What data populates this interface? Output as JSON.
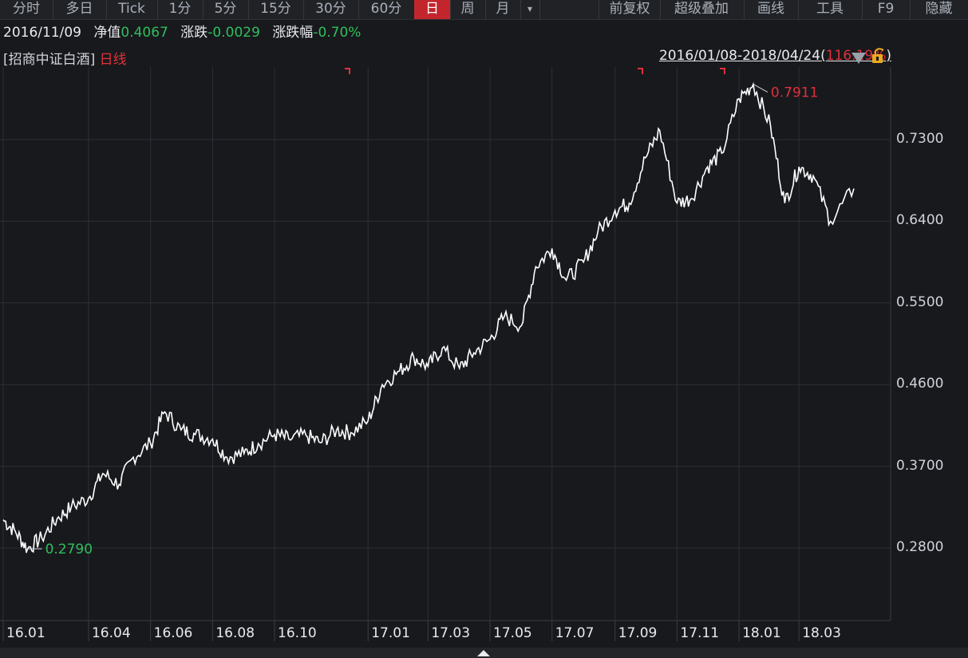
{
  "toolbar": {
    "tabs": [
      "分时",
      "多日",
      "Tick",
      "1分",
      "5分",
      "15分",
      "30分",
      "60分",
      "日",
      "周",
      "月",
      "▾"
    ],
    "active_tab": "日",
    "right": [
      "前复权",
      "超级叠加",
      "画线",
      "工具",
      "F9",
      "隐藏"
    ]
  },
  "info": {
    "date": "2016/11/09",
    "nav_label": "净值",
    "nav_value": "0.4067",
    "chg_label": "涨跌",
    "chg_value": "-0.0029",
    "pct_label": "涨跌幅",
    "pct_value": "-0.70%"
  },
  "series_title": "[招商中证白酒]",
  "period_label": "日线",
  "range_text": "2016/01/08-2018/04/24(",
  "range_pct": "116.19%",
  "range_close": ")",
  "colors": {
    "up": "#e0313a",
    "down": "#2fbf5c",
    "line": "#ffffff",
    "bg": "#18191d",
    "grid": "#2c2f36"
  },
  "chart_data": {
    "type": "line",
    "title": "",
    "x_tick_labels": [
      "16.01",
      "16.04",
      "16.06",
      "16.08",
      "16.10",
      "17.01",
      "17.03",
      "17.05",
      "17.07",
      "17.09",
      "17.11",
      "18.01",
      "18.03"
    ],
    "y_tick_labels": [
      "0.7300",
      "0.6400",
      "0.5500",
      "0.4600",
      "0.3700",
      "0.2800"
    ],
    "ylim": [
      0.2,
      0.81
    ],
    "max_label": "0.7911",
    "min_label": "0.2790",
    "grid": true,
    "series": [
      {
        "x": [
          "2016-01-08",
          "2016-01-20",
          "2016-02-01",
          "2016-02-15",
          "2016-03-01",
          "2016-03-15",
          "2016-04-01",
          "2016-04-15",
          "2016-05-01",
          "2016-05-15",
          "2016-06-01",
          "2016-06-15",
          "2016-07-01",
          "2016-07-15",
          "2016-08-01",
          "2016-08-15",
          "2016-09-01",
          "2016-09-15",
          "2016-10-01",
          "2016-10-15",
          "2016-11-01",
          "2016-11-15",
          "2016-12-01",
          "2016-12-15",
          "2017-01-01",
          "2017-01-15",
          "2017-02-01",
          "2017-02-15",
          "2017-03-01",
          "2017-03-15",
          "2017-04-01",
          "2017-04-15",
          "2017-05-01",
          "2017-05-15",
          "2017-06-01",
          "2017-06-15",
          "2017-07-01",
          "2017-07-15",
          "2017-08-01",
          "2017-08-15",
          "2017-09-01",
          "2017-09-15",
          "2017-10-01",
          "2017-10-15",
          "2017-11-01",
          "2017-11-15",
          "2017-12-01",
          "2017-12-15",
          "2018-01-01",
          "2018-01-15",
          "2018-02-01",
          "2018-02-15",
          "2018-03-01",
          "2018-03-15",
          "2018-04-01",
          "2018-04-24"
        ],
        "values": [
          0.311,
          0.298,
          0.279,
          0.291,
          0.312,
          0.325,
          0.335,
          0.362,
          0.35,
          0.38,
          0.395,
          0.43,
          0.41,
          0.405,
          0.4,
          0.38,
          0.384,
          0.395,
          0.405,
          0.4,
          0.404,
          0.396,
          0.41,
          0.407,
          0.42,
          0.46,
          0.475,
          0.49,
          0.48,
          0.5,
          0.478,
          0.495,
          0.51,
          0.535,
          0.525,
          0.59,
          0.61,
          0.575,
          0.595,
          0.628,
          0.652,
          0.66,
          0.71,
          0.74,
          0.66,
          0.665,
          0.7,
          0.715,
          0.775,
          0.791,
          0.745,
          0.66,
          0.7,
          0.69,
          0.64,
          0.676
        ]
      }
    ]
  }
}
